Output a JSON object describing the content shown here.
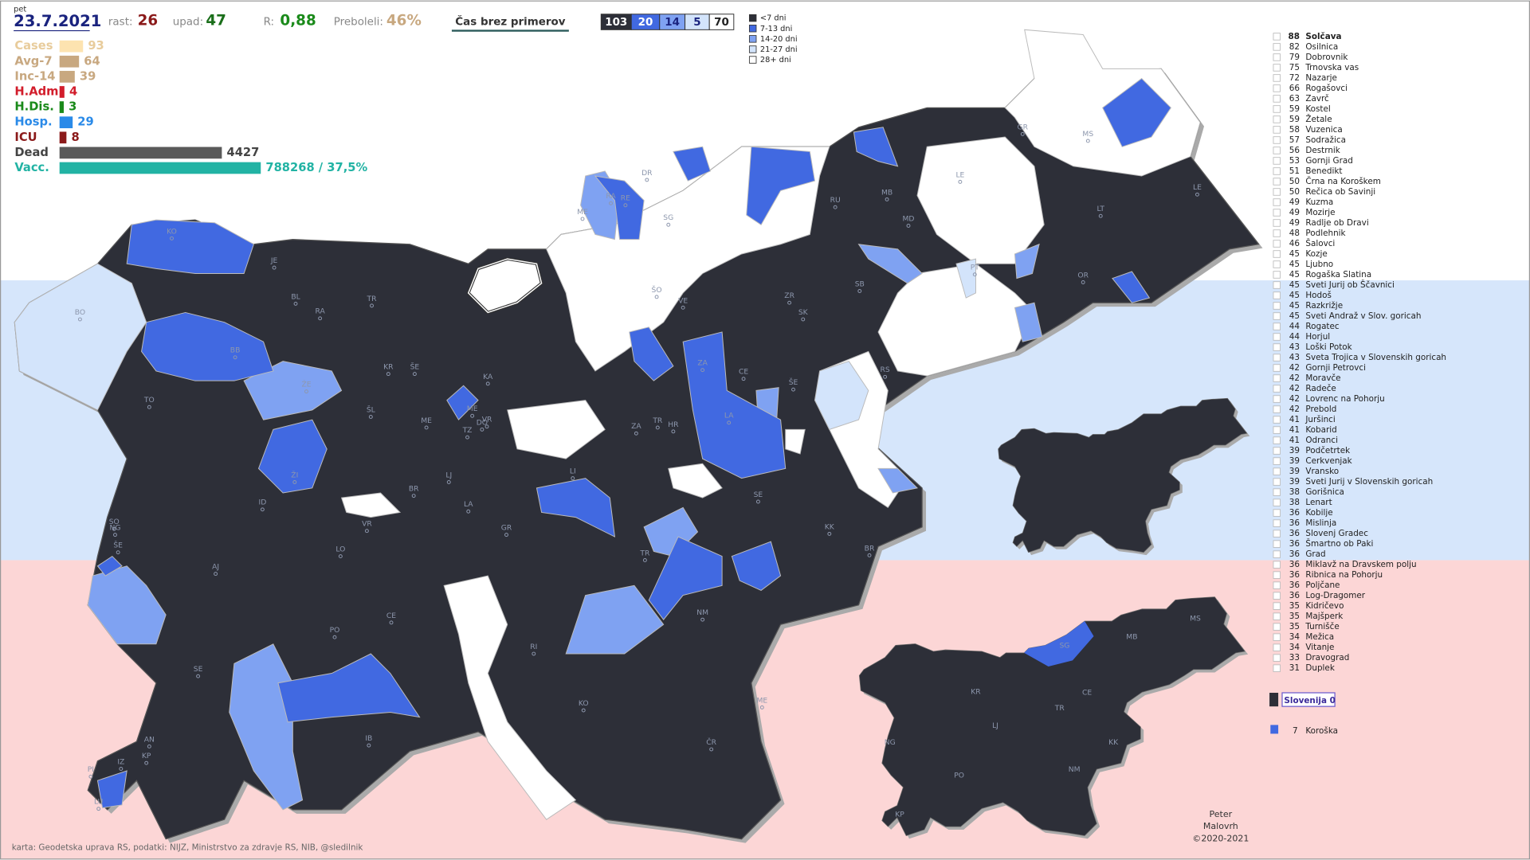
{
  "header": {
    "weekday": "pet",
    "date": "23.7.2021",
    "growth_label": "rast:",
    "growth": 26,
    "decline_label": "upad:",
    "decline": 47,
    "r_label": "R:",
    "r_value": "0,88",
    "recovered_label": "Preboleli:",
    "recovered": "46%",
    "mode_button": "Čas brez primerov",
    "range_counts": [
      103,
      20,
      14,
      5,
      70
    ]
  },
  "legend": [
    "<7 dni",
    "7-13 dni",
    "14-20 dni",
    "21-27 dni",
    "28+ dni"
  ],
  "stats": [
    {
      "label": "Cases",
      "value": 93,
      "color": "#fde3b0",
      "label_color": "#e8cc9c"
    },
    {
      "label": "Avg-7",
      "value": 64,
      "color": "#c8a880",
      "label_color": "#c8a880"
    },
    {
      "label": "Inc-14",
      "value": 39,
      "color": "#c8a880",
      "label_color": "#c8a880"
    },
    {
      "label": "H.Adm",
      "value": 4,
      "color": "#d21d2b",
      "label_color": "#d21d2b"
    },
    {
      "label": "H.Dis.",
      "value": 3,
      "color": "#1a8a1a",
      "label_color": "#1a8a1a"
    },
    {
      "label": "Hosp.",
      "value": 29,
      "color": "#2a8ae8",
      "label_color": "#2a8ae8"
    },
    {
      "label": "ICU",
      "value": 8,
      "color": "#8b1a1a",
      "label_color": "#8b1a1a"
    },
    {
      "label": "Dead",
      "value": 4427,
      "color": "#5a5a5a",
      "label_color": "#444"
    }
  ],
  "vaccination": {
    "label": "Vacc.",
    "percent": 37.5,
    "value_label": "788268 / 37,5%",
    "color": "#22b3a4"
  },
  "map_labels": [
    "DR",
    "RA",
    "RE",
    "ME",
    "SG",
    "GR",
    "MS",
    "LE",
    "MB",
    "RU",
    "MD",
    "LE",
    "LT",
    "KO",
    "JE",
    "BL",
    "TR",
    "RA",
    "ŠO",
    "VE",
    "PT",
    "SB",
    "ZR",
    "SK",
    "OR",
    "BO",
    "BB",
    "KR",
    "ŠE",
    "ŽE",
    "KA",
    "ZA",
    "CE",
    "RS",
    "ŠE",
    "TO",
    "ŠL",
    "ME",
    "ME",
    "VR",
    "DO",
    "TZ",
    "ZA",
    "TR",
    "HR",
    "LA",
    "ŽI",
    "BR",
    "LJ",
    "LI",
    "ID",
    "LA",
    "SE",
    "SO",
    "NG",
    "ŠE",
    "VR",
    "GR",
    "KK",
    "LO",
    "TR",
    "BR",
    "AJ",
    "CE",
    "NM",
    "PO",
    "RI",
    "SE",
    "KO",
    "ME",
    "IB",
    "AN",
    "KP",
    "IZ",
    "PI",
    "LU",
    "ČR"
  ],
  "mini_map_labels": [
    "SG",
    "MB",
    "MS",
    "KR",
    "CE",
    "LJ",
    "TR",
    "NG",
    "KK",
    "PO",
    "NM",
    "KP"
  ],
  "municipalities": [
    {
      "count": 88,
      "name": "Solčava"
    },
    {
      "count": 82,
      "name": "Osilnica"
    },
    {
      "count": 79,
      "name": "Dobrovnik"
    },
    {
      "count": 75,
      "name": "Trnovska vas"
    },
    {
      "count": 72,
      "name": "Nazarje"
    },
    {
      "count": 66,
      "name": "Rogašovci"
    },
    {
      "count": 63,
      "name": "Zavrč"
    },
    {
      "count": 59,
      "name": "Kostel"
    },
    {
      "count": 59,
      "name": "Žetale"
    },
    {
      "count": 58,
      "name": "Vuzenica"
    },
    {
      "count": 57,
      "name": "Sodražica"
    },
    {
      "count": 56,
      "name": "Destrnik"
    },
    {
      "count": 53,
      "name": "Gornji Grad"
    },
    {
      "count": 51,
      "name": "Benedikt"
    },
    {
      "count": 50,
      "name": "Črna na Koroškem"
    },
    {
      "count": 50,
      "name": "Rečica ob Savinji"
    },
    {
      "count": 49,
      "name": "Kuzma"
    },
    {
      "count": 49,
      "name": "Mozirje"
    },
    {
      "count": 49,
      "name": "Radlje ob Dravi"
    },
    {
      "count": 48,
      "name": "Podlehnik"
    },
    {
      "count": 46,
      "name": "Šalovci"
    },
    {
      "count": 45,
      "name": "Kozje"
    },
    {
      "count": 45,
      "name": "Ljubno"
    },
    {
      "count": 45,
      "name": "Rogaška Slatina"
    },
    {
      "count": 45,
      "name": "Sveti Jurij ob Ščavnici"
    },
    {
      "count": 45,
      "name": "Hodoš"
    },
    {
      "count": 45,
      "name": "Razkrižje"
    },
    {
      "count": 45,
      "name": "Sveti Andraž v Slov. goricah"
    },
    {
      "count": 44,
      "name": "Rogatec"
    },
    {
      "count": 44,
      "name": "Horjul"
    },
    {
      "count": 43,
      "name": "Loški Potok"
    },
    {
      "count": 43,
      "name": "Sveta Trojica v Slovenskih goricah"
    },
    {
      "count": 42,
      "name": "Gornji Petrovci"
    },
    {
      "count": 42,
      "name": "Moravče"
    },
    {
      "count": 42,
      "name": "Radeče"
    },
    {
      "count": 42,
      "name": "Lovrenc na Pohorju"
    },
    {
      "count": 42,
      "name": "Prebold"
    },
    {
      "count": 41,
      "name": "Juršinci"
    },
    {
      "count": 41,
      "name": "Kobarid"
    },
    {
      "count": 41,
      "name": "Odranci"
    },
    {
      "count": 39,
      "name": "Podčetrtek"
    },
    {
      "count": 39,
      "name": "Cerkvenjak"
    },
    {
      "count": 39,
      "name": "Vransko"
    },
    {
      "count": 39,
      "name": "Sveti Jurij v Slovenskih goricah"
    },
    {
      "count": 38,
      "name": "Gorišnica"
    },
    {
      "count": 38,
      "name": "Lenart"
    },
    {
      "count": 36,
      "name": "Kobilje"
    },
    {
      "count": 36,
      "name": "Mislinja"
    },
    {
      "count": 36,
      "name": "Slovenj Gradec"
    },
    {
      "count": 36,
      "name": "Šmartno ob Paki"
    },
    {
      "count": 36,
      "name": "Grad"
    },
    {
      "count": 36,
      "name": "Miklavž na Dravskem polju"
    },
    {
      "count": 36,
      "name": "Ribnica na Pohorju"
    },
    {
      "count": 36,
      "name": "Poljčane"
    },
    {
      "count": 36,
      "name": "Log-Dragomer"
    },
    {
      "count": 35,
      "name": "Kidričevo"
    },
    {
      "count": 35,
      "name": "Majšperk"
    },
    {
      "count": 35,
      "name": "Turnišče"
    },
    {
      "count": 34,
      "name": "Mežica"
    },
    {
      "count": 34,
      "name": "Vitanje"
    },
    {
      "count": 33,
      "name": "Dravograd"
    },
    {
      "count": 31,
      "name": "Duplek"
    }
  ],
  "summary": {
    "country": "Slovenija 0",
    "region_count": 7,
    "region": "Koroška"
  },
  "credits": [
    "Peter",
    "Malovrh",
    "©2020-2021"
  ],
  "source": "karta: Geodetska uprava RS,  podatki: NIJZ, Ministrstvo za zdravje RS, NIB, @sledilnik"
}
